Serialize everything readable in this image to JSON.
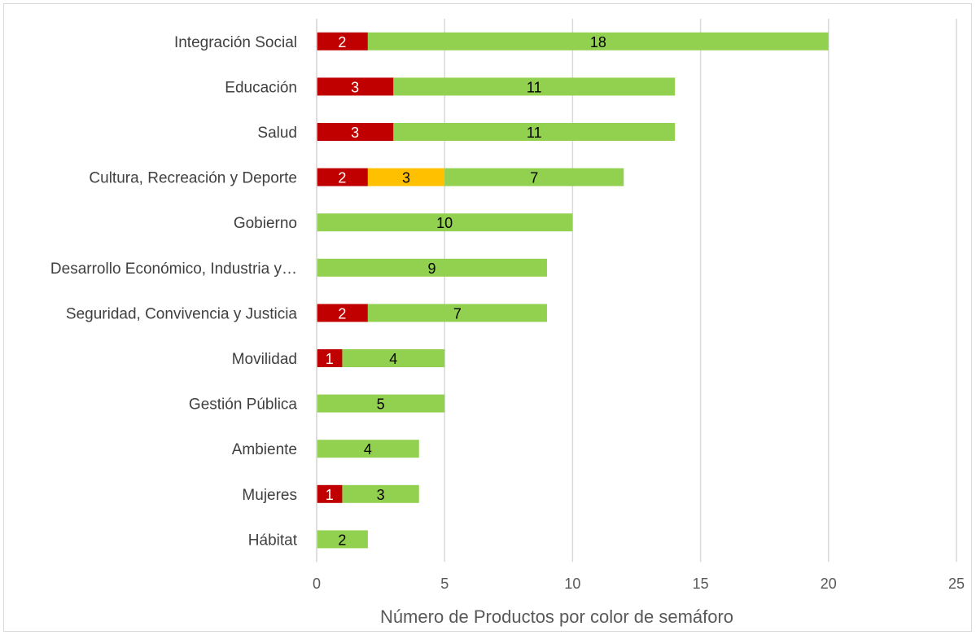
{
  "chart_data": {
    "type": "bar",
    "orientation": "horizontal",
    "stacked": true,
    "categories": [
      "Integración Social",
      "Educación",
      "Salud",
      "Cultura, Recreación y Deporte",
      "Gobierno",
      "Desarrollo Económico, Industria y…",
      "Seguridad, Convivencia y Justicia",
      "Movilidad",
      "Gestión Pública",
      "Ambiente",
      "Mujeres",
      "Hábitat"
    ],
    "series": [
      {
        "color": "#c00000",
        "label_color": "#ffffff",
        "values": [
          2,
          3,
          3,
          2,
          0,
          0,
          2,
          1,
          0,
          0,
          1,
          0
        ]
      },
      {
        "color": "#ffc000",
        "label_color": "#000000",
        "values": [
          0,
          0,
          0,
          3,
          0,
          0,
          0,
          0,
          0,
          0,
          0,
          0
        ]
      },
      {
        "color": "#92d050",
        "label_color": "#000000",
        "values": [
          18,
          11,
          11,
          7,
          10,
          9,
          7,
          4,
          5,
          4,
          3,
          2
        ]
      }
    ],
    "xlabel": "Número de Productos por color de semáforo",
    "ylabel": "",
    "xlim": [
      0,
      25
    ],
    "xticks": [
      0,
      5,
      10,
      15,
      20,
      25
    ],
    "grid": "vertical",
    "legend": "none"
  }
}
